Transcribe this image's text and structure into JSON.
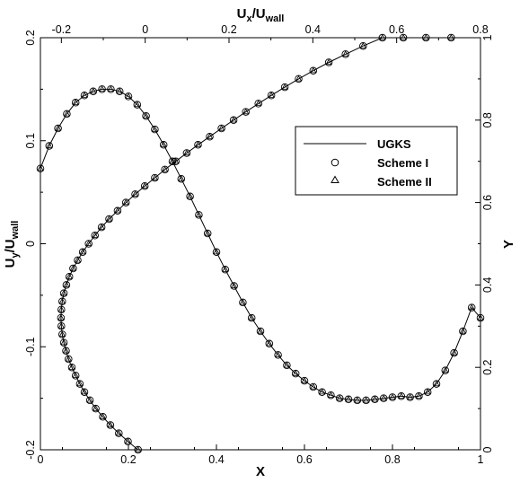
{
  "chart_data": {
    "type": "line",
    "title": "",
    "xlabel": "X",
    "ylabel_left": "U_y/U_wall",
    "ylabel_left_main": "U",
    "ylabel_left_sub1": "y",
    "ylabel_left_mid": "/U",
    "ylabel_left_sub2": "wall",
    "xlabel_top": "U_x/U_wall",
    "xlabel_top_main": "U",
    "xlabel_top_sub1": "x",
    "xlabel_top_mid": "/U",
    "xlabel_top_sub2": "wall",
    "ylabel_right": "Y",
    "xlim": [
      0,
      1
    ],
    "ylim_left": [
      -0.2,
      0.2
    ],
    "xlim_top": [
      -0.25,
      0.8
    ],
    "ylim_right": [
      0,
      1
    ],
    "xticks": [
      "0",
      "0.2",
      "0.4",
      "0.6",
      "0.8",
      "1"
    ],
    "yticks_left": [
      "-0.2",
      "-0.1",
      "0",
      "0.1",
      "0.2"
    ],
    "xticks_top": [
      "-0.2",
      "0",
      "0.2",
      "0.4",
      "0.6",
      "0.8"
    ],
    "yticks_right": [
      "0",
      "0.2",
      "0.4",
      "0.6",
      "0.8",
      "1"
    ],
    "grid": false,
    "legend_position": "upper-right",
    "legend": [
      {
        "name": "UGKS",
        "marker": "line"
      },
      {
        "name": "Scheme I",
        "marker": "circle"
      },
      {
        "name": "Scheme II",
        "marker": "triangle"
      }
    ],
    "series": [
      {
        "description": "U_y/U_wall vs X (bottom and left axes)",
        "x": [
          0,
          0.02,
          0.04,
          0.06,
          0.08,
          0.1,
          0.12,
          0.14,
          0.16,
          0.18,
          0.2,
          0.22,
          0.24,
          0.26,
          0.28,
          0.3,
          0.32,
          0.34,
          0.36,
          0.38,
          0.4,
          0.42,
          0.44,
          0.46,
          0.48,
          0.5,
          0.52,
          0.54,
          0.56,
          0.58,
          0.6,
          0.62,
          0.64,
          0.66,
          0.68,
          0.7,
          0.72,
          0.74,
          0.76,
          0.78,
          0.8,
          0.82,
          0.84,
          0.86,
          0.88,
          0.9,
          0.92,
          0.94,
          0.96,
          0.98,
          1
        ],
        "y": [
          0.073,
          0.095,
          0.112,
          0.126,
          0.137,
          0.144,
          0.148,
          0.15,
          0.15,
          0.148,
          0.143,
          0.135,
          0.124,
          0.111,
          0.096,
          0.08,
          0.063,
          0.046,
          0.028,
          0.01,
          -0.008,
          -0.025,
          -0.041,
          -0.057,
          -0.072,
          -0.085,
          -0.097,
          -0.108,
          -0.118,
          -0.126,
          -0.133,
          -0.139,
          -0.144,
          -0.147,
          -0.15,
          -0.151,
          -0.152,
          -0.152,
          -0.151,
          -0.15,
          -0.149,
          -0.148,
          -0.149,
          -0.148,
          -0.144,
          -0.136,
          -0.123,
          -0.106,
          -0.085,
          -0.062,
          -0.072
        ]
      },
      {
        "description": "Y vs U_x/U_wall (top and right axes)",
        "x": [
          -0.017,
          -0.041,
          -0.063,
          -0.083,
          -0.101,
          -0.118,
          -0.132,
          -0.145,
          -0.156,
          -0.166,
          -0.175,
          -0.183,
          -0.189,
          -0.194,
          -0.198,
          -0.2,
          -0.201,
          -0.2,
          -0.198,
          -0.194,
          -0.188,
          -0.181,
          -0.172,
          -0.161,
          -0.149,
          -0.135,
          -0.12,
          -0.104,
          -0.086,
          -0.066,
          -0.046,
          -0.024,
          -0.001,
          0.023,
          0.047,
          0.073,
          0.099,
          0.126,
          0.154,
          0.182,
          0.211,
          0.24,
          0.27,
          0.301,
          0.333,
          0.366,
          0.401,
          0.438,
          0.478,
          0.52,
          0.566,
          0.616,
          0.67,
          0.73
        ],
        "y": [
          0,
          0.02,
          0.04,
          0.06,
          0.08,
          0.1,
          0.12,
          0.14,
          0.16,
          0.18,
          0.2,
          0.22,
          0.24,
          0.26,
          0.28,
          0.3,
          0.32,
          0.34,
          0.36,
          0.38,
          0.4,
          0.42,
          0.44,
          0.46,
          0.48,
          0.5,
          0.52,
          0.54,
          0.56,
          0.58,
          0.6,
          0.62,
          0.64,
          0.66,
          0.68,
          0.7,
          0.72,
          0.74,
          0.76,
          0.78,
          0.8,
          0.82,
          0.84,
          0.86,
          0.88,
          0.9,
          0.92,
          0.94,
          0.96,
          0.98,
          1,
          1,
          1,
          1
        ]
      }
    ]
  }
}
